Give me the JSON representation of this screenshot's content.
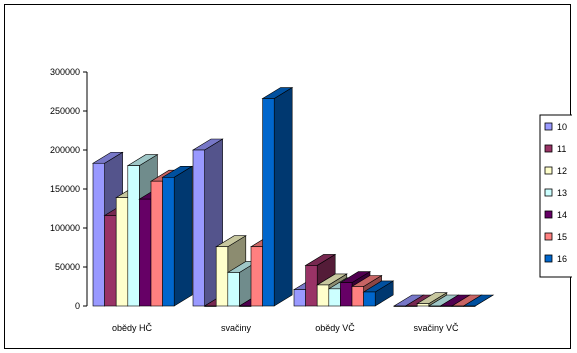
{
  "chart_data": {
    "type": "bar",
    "title": "",
    "xlabel": "",
    "ylabel": "",
    "ylim": [
      0,
      300000
    ],
    "yticks": [
      0,
      50000,
      100000,
      150000,
      200000,
      250000,
      300000
    ],
    "categories": [
      "obědy HČ",
      "svačiny",
      "obědy VČ",
      "svačiny VČ"
    ],
    "series": [
      {
        "name": "10",
        "color": "#9999FF",
        "values": [
          183000,
          200000,
          21000,
          0
        ]
      },
      {
        "name": "11",
        "color": "#993366",
        "values": [
          116000,
          0,
          52000,
          0
        ]
      },
      {
        "name": "12",
        "color": "#FFFFCC",
        "values": [
          139000,
          76000,
          27000,
          3000
        ]
      },
      {
        "name": "13",
        "color": "#CCFFFF",
        "values": [
          180000,
          43000,
          22000,
          0
        ]
      },
      {
        "name": "14",
        "color": "#660066",
        "values": [
          137000,
          0,
          30000,
          0
        ]
      },
      {
        "name": "15",
        "color": "#FF8080",
        "values": [
          160000,
          76000,
          25000,
          0
        ]
      },
      {
        "name": "16",
        "color": "#0066CC",
        "values": [
          165000,
          266000,
          18000,
          0
        ]
      }
    ],
    "grid": false,
    "legend_position": "right"
  }
}
